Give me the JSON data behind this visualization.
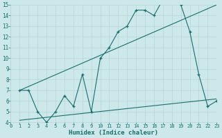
{
  "title": "",
  "xlabel": "Humidex (Indice chaleur)",
  "bg_color": "#cce8eb",
  "grid_major_color": "#b8d4d8",
  "grid_minor_color": "#d8ecef",
  "line_color": "#1a6e6a",
  "xmin": 0,
  "xmax": 23,
  "ymin": 4,
  "ymax": 15,
  "line1_x": [
    1,
    2,
    3,
    4,
    5,
    6,
    7,
    8,
    9,
    10,
    11,
    12,
    13,
    14,
    15,
    16,
    17,
    18,
    19,
    20,
    21,
    22,
    23
  ],
  "line1_y": [
    7,
    7,
    5,
    4,
    5,
    6.5,
    5.5,
    8.5,
    5,
    10,
    11,
    12.5,
    13,
    14.5,
    14.5,
    14,
    15.5,
    15.5,
    15,
    12.5,
    8.5,
    5.5,
    6
  ],
  "line2_x": [
    1,
    23
  ],
  "line2_y": [
    7,
    15
  ],
  "line3_x": [
    1,
    23
  ],
  "line3_y": [
    4.2,
    6.2
  ],
  "xticks": [
    0,
    1,
    2,
    3,
    4,
    5,
    6,
    7,
    8,
    9,
    10,
    11,
    12,
    13,
    14,
    15,
    16,
    17,
    18,
    19,
    20,
    21,
    22,
    23
  ],
  "yticks": [
    4,
    5,
    6,
    7,
    8,
    9,
    10,
    11,
    12,
    13,
    14,
    15
  ]
}
